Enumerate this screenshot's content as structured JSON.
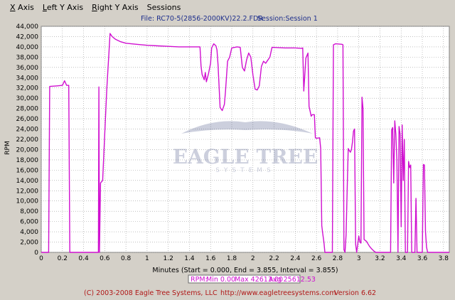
{
  "menu": [
    {
      "label": "X Axis",
      "hotkey": "X",
      "rest": " Axis"
    },
    {
      "label": "Left Y Axis",
      "hotkey": "L",
      "rest": "eft Y Axis"
    },
    {
      "label": "Right Y Axis",
      "hotkey": "R",
      "rest": "ight Y Axis"
    },
    {
      "label": "Sessions",
      "hotkey": "",
      "rest": "Sessions"
    }
  ],
  "header": {
    "file": "File: RC70-5(2856-2000KV)22.2.FDR",
    "session": "Session:Session 1"
  },
  "watermark": {
    "line1": "EAGLE TREE",
    "line2": "SYSTEMS"
  },
  "footer": {
    "copyright": "(C) 2003-2008 Eagle Tree Systems, LLC",
    "url": "http://www.eagletreesystems.com",
    "version": "Version 6.62"
  },
  "legend": {
    "label": "RPM:",
    "min": "Min 0.00",
    "max": "Max 42613.00",
    "avg": "Avg 25612.53"
  },
  "colors": {
    "series": "#d010d0",
    "plot_bg": "#ffffff",
    "grid": "#9a9a9a",
    "header_text": "#1e2f8c",
    "footer_text": "#b01818"
  },
  "chart_data": {
    "type": "line",
    "ylabel": "RPM",
    "xlabel": "Minutes (Start = 0.000,  End = 3.855,  Interval = 3.855)",
    "xlim": [
      0,
      3.855
    ],
    "ylim": [
      0,
      44000
    ],
    "x_ticks": [
      "0",
      "0.2",
      "0.4",
      "0.6",
      "0.8",
      "1",
      "1.2",
      "1.4",
      "1.6",
      "1.8",
      "2",
      "2.2",
      "2.4",
      "2.6",
      "2.8",
      "3",
      "3.2",
      "3.4",
      "3.6",
      "3.8"
    ],
    "y_ticks": [
      "0",
      "2,000",
      "4,000",
      "6,000",
      "8,000",
      "10,000",
      "12,000",
      "14,000",
      "16,000",
      "18,000",
      "20,000",
      "22,000",
      "24,000",
      "26,000",
      "28,000",
      "30,000",
      "32,000",
      "34,000",
      "36,000",
      "38,000",
      "40,000",
      "42,000",
      "44,000"
    ],
    "grid": true,
    "series": [
      {
        "name": "RPM",
        "points": [
          [
            0.0,
            0
          ],
          [
            0.07,
            0
          ],
          [
            0.08,
            32300
          ],
          [
            0.15,
            32400
          ],
          [
            0.2,
            32500
          ],
          [
            0.22,
            33400
          ],
          [
            0.24,
            32500
          ],
          [
            0.26,
            32500
          ],
          [
            0.27,
            0
          ],
          [
            0.54,
            0
          ],
          [
            0.545,
            32200
          ],
          [
            0.55,
            0
          ],
          [
            0.56,
            13500
          ],
          [
            0.58,
            14000
          ],
          [
            0.6,
            23000
          ],
          [
            0.62,
            32000
          ],
          [
            0.64,
            39000
          ],
          [
            0.65,
            42600
          ],
          [
            0.67,
            42000
          ],
          [
            0.7,
            41500
          ],
          [
            0.75,
            41000
          ],
          [
            0.8,
            40700
          ],
          [
            0.9,
            40500
          ],
          [
            1.0,
            40300
          ],
          [
            1.1,
            40200
          ],
          [
            1.2,
            40100
          ],
          [
            1.3,
            40000
          ],
          [
            1.4,
            40000
          ],
          [
            1.5,
            40000
          ],
          [
            1.51,
            36200
          ],
          [
            1.52,
            34600
          ],
          [
            1.54,
            33600
          ],
          [
            1.55,
            35000
          ],
          [
            1.56,
            33200
          ],
          [
            1.58,
            34800
          ],
          [
            1.6,
            36800
          ],
          [
            1.61,
            39800
          ],
          [
            1.63,
            40600
          ],
          [
            1.65,
            40200
          ],
          [
            1.66,
            39400
          ],
          [
            1.67,
            36500
          ],
          [
            1.69,
            28200
          ],
          [
            1.71,
            27600
          ],
          [
            1.73,
            28800
          ],
          [
            1.74,
            31200
          ],
          [
            1.76,
            37200
          ],
          [
            1.78,
            38000
          ],
          [
            1.8,
            39800
          ],
          [
            1.85,
            40000
          ],
          [
            1.88,
            39900
          ],
          [
            1.9,
            36000
          ],
          [
            1.92,
            35300
          ],
          [
            1.94,
            37500
          ],
          [
            1.96,
            38800
          ],
          [
            1.98,
            38000
          ],
          [
            2.0,
            34500
          ],
          [
            2.02,
            31800
          ],
          [
            2.04,
            31600
          ],
          [
            2.06,
            32400
          ],
          [
            2.08,
            36200
          ],
          [
            2.1,
            37200
          ],
          [
            2.12,
            36800
          ],
          [
            2.14,
            37400
          ],
          [
            2.16,
            38000
          ],
          [
            2.18,
            39900
          ],
          [
            2.3,
            39800
          ],
          [
            2.4,
            39800
          ],
          [
            2.46,
            39700
          ],
          [
            2.47,
            39800
          ],
          [
            2.48,
            31400
          ],
          [
            2.5,
            37800
          ],
          [
            2.52,
            38800
          ],
          [
            2.53,
            28400
          ],
          [
            2.54,
            27500
          ],
          [
            2.55,
            26500
          ],
          [
            2.56,
            26800
          ],
          [
            2.58,
            26800
          ],
          [
            2.59,
            22300
          ],
          [
            2.6,
            22200
          ],
          [
            2.63,
            22300
          ],
          [
            2.64,
            20200
          ],
          [
            2.65,
            5200
          ],
          [
            2.66,
            3500
          ],
          [
            2.67,
            2000
          ],
          [
            2.68,
            0
          ],
          [
            2.75,
            0
          ],
          [
            2.76,
            40400
          ],
          [
            2.78,
            40600
          ],
          [
            2.84,
            40500
          ],
          [
            2.85,
            40400
          ],
          [
            2.86,
            500
          ],
          [
            2.87,
            0
          ],
          [
            2.88,
            3400
          ],
          [
            2.89,
            12000
          ],
          [
            2.9,
            20200
          ],
          [
            2.92,
            19500
          ],
          [
            2.93,
            20000
          ],
          [
            2.94,
            21500
          ],
          [
            2.95,
            23600
          ],
          [
            2.96,
            24000
          ],
          [
            2.97,
            1600
          ],
          [
            2.98,
            0
          ],
          [
            3.0,
            3200
          ],
          [
            3.01,
            2000
          ],
          [
            3.02,
            1800
          ],
          [
            3.03,
            30200
          ],
          [
            3.04,
            28000
          ],
          [
            3.05,
            2500
          ],
          [
            3.07,
            2200
          ],
          [
            3.08,
            1900
          ],
          [
            3.1,
            1200
          ],
          [
            3.12,
            700
          ],
          [
            3.14,
            300
          ],
          [
            3.16,
            0
          ],
          [
            3.3,
            0
          ],
          [
            3.31,
            23800
          ],
          [
            3.32,
            24300
          ],
          [
            3.33,
            13500
          ],
          [
            3.34,
            25600
          ],
          [
            3.35,
            23000
          ],
          [
            3.36,
            17800
          ],
          [
            3.37,
            0
          ],
          [
            3.38,
            24500
          ],
          [
            3.39,
            23000
          ],
          [
            3.4,
            5000
          ],
          [
            3.41,
            24800
          ],
          [
            3.42,
            14000
          ],
          [
            3.43,
            22000
          ],
          [
            3.44,
            0
          ],
          [
            3.46,
            0
          ],
          [
            3.47,
            17700
          ],
          [
            3.48,
            16500
          ],
          [
            3.49,
            17000
          ],
          [
            3.5,
            0
          ],
          [
            3.52,
            0
          ],
          [
            3.53,
            0
          ],
          [
            3.54,
            10500
          ],
          [
            3.55,
            0
          ],
          [
            3.6,
            0
          ],
          [
            3.61,
            17100
          ],
          [
            3.62,
            17000
          ],
          [
            3.63,
            4000
          ],
          [
            3.64,
            1000
          ],
          [
            3.65,
            0
          ],
          [
            3.855,
            0
          ]
        ]
      }
    ]
  }
}
